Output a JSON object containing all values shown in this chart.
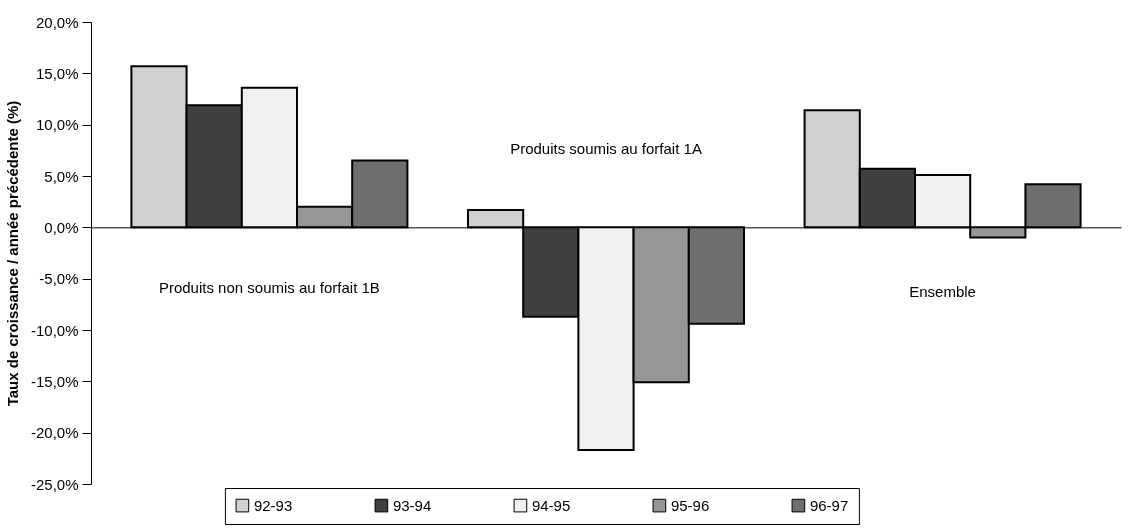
{
  "chart_data": {
    "type": "bar",
    "ylabel": "Taux de croissance / année précédente (%)",
    "categories": [
      null,
      null,
      null
    ],
    "series": [
      {
        "name": "92-93",
        "color": "#d0d0d0",
        "values": [
          15.7,
          1.7,
          11.4
        ]
      },
      {
        "name": "93-94",
        "color": "#404040",
        "values": [
          11.9,
          -8.7,
          5.7
        ]
      },
      {
        "name": "94-95",
        "color": "#f0f0f0",
        "values": [
          13.6,
          -21.7,
          5.1
        ]
      },
      {
        "name": "95-96",
        "color": "#969696",
        "values": [
          2.0,
          -15.1,
          -1.0
        ]
      },
      {
        "name": "96-97",
        "color": "#6e6e6e",
        "values": [
          6.5,
          -9.4,
          4.2
        ]
      }
    ],
    "ylim": [
      -25,
      20
    ],
    "yticks": [
      {
        "value": -25,
        "label": "-25,0%"
      },
      {
        "value": -20,
        "label": "-20,0%"
      },
      {
        "value": -15,
        "label": "-15,0%"
      },
      {
        "value": -10,
        "label": "-10,0%"
      },
      {
        "value": -5,
        "label": "-5,0%"
      },
      {
        "value": 0,
        "label": "0,0%"
      },
      {
        "value": 5,
        "label": "5,0%"
      },
      {
        "value": 10,
        "label": "10,0%"
      },
      {
        "value": 15,
        "label": "15,0%"
      },
      {
        "value": 20,
        "label": "20,0%"
      }
    ],
    "annotations": [
      "Produits non soumis au forfait 1B",
      "Produits soumis au forfait 1A",
      "Ensemble"
    ],
    "legend": "bottom",
    "tick_labels": "y"
  }
}
